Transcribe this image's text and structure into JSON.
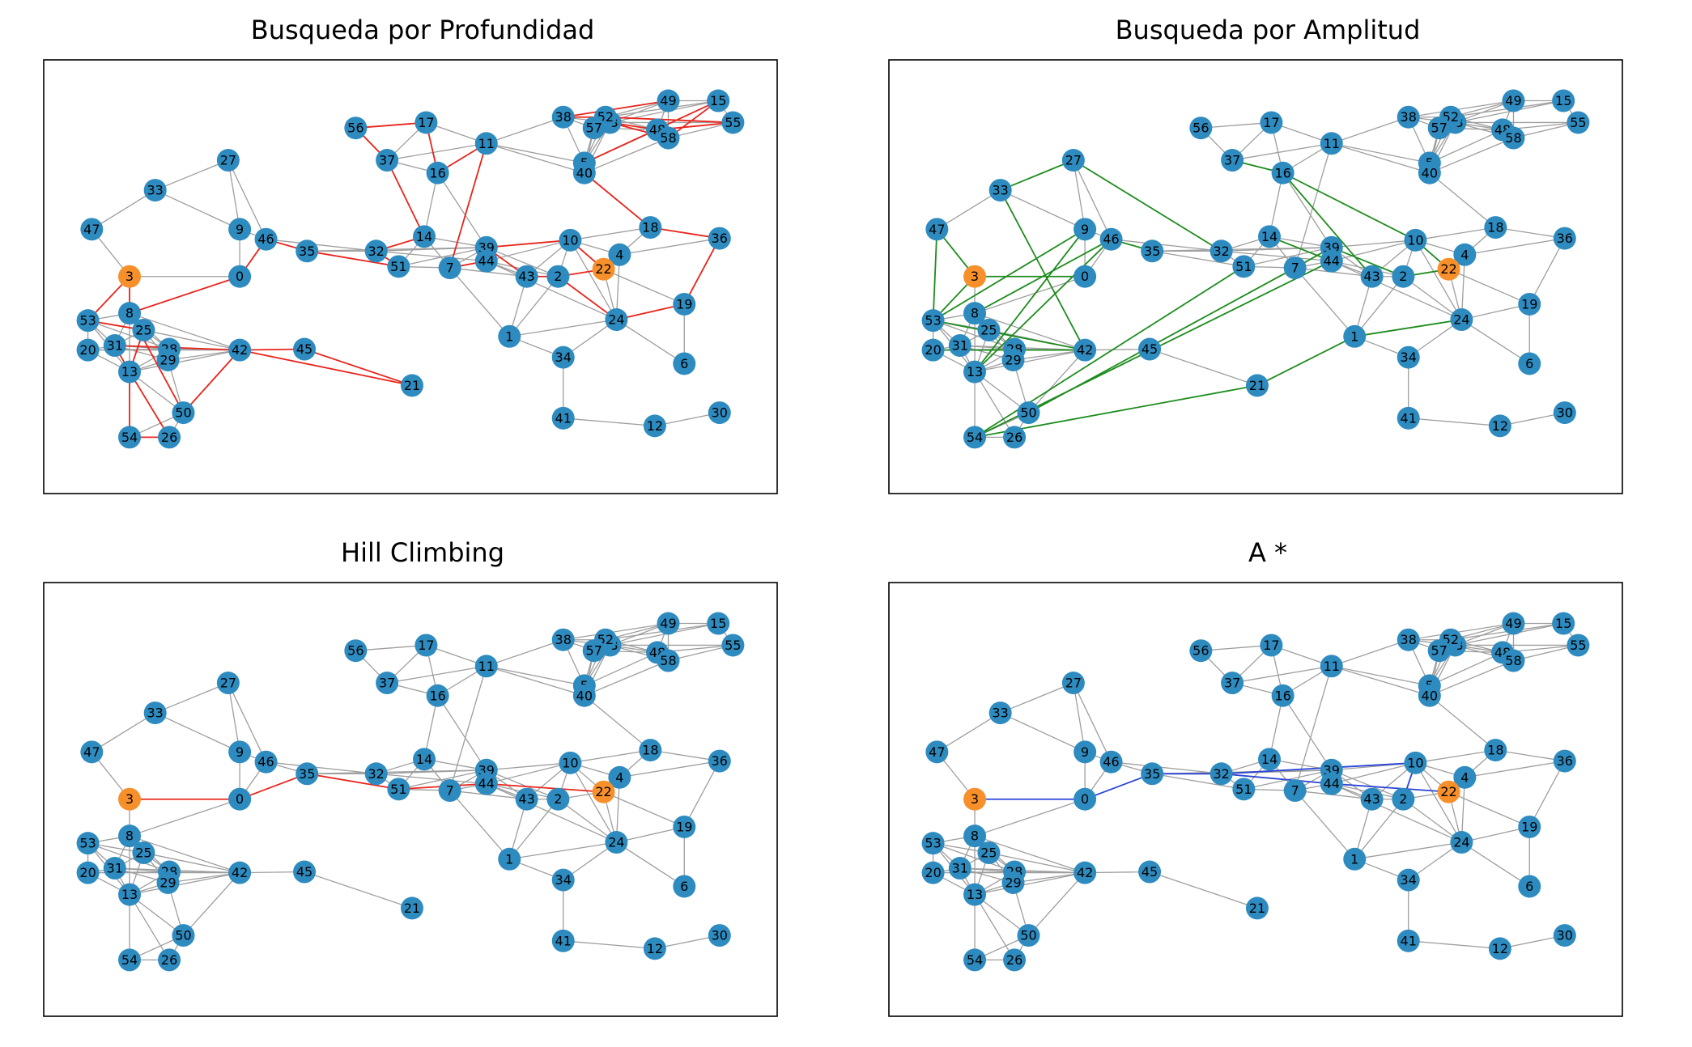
{
  "figure": {
    "node_color": "#2e8bc0",
    "highlight_color": "#f7902b",
    "edge_color": "#9e9e9e",
    "frame_color": "#000000",
    "start_node": "3",
    "goal_node": "22"
  },
  "nodes": [
    {
      "id": "0",
      "x": 3.06,
      "y": 6.13
    },
    {
      "id": "1",
      "x": 7.27,
      "y": 4.81
    },
    {
      "id": "2",
      "x": 8.03,
      "y": 6.13
    },
    {
      "id": "3",
      "x": 1.34,
      "y": 6.13
    },
    {
      "id": "4",
      "x": 8.99,
      "y": 6.61
    },
    {
      "id": "5",
      "x": 8.44,
      "y": 8.63
    },
    {
      "id": "6",
      "x": 10.0,
      "y": 4.21
    },
    {
      "id": "7",
      "x": 6.34,
      "y": 6.32
    },
    {
      "id": "8",
      "x": 1.34,
      "y": 5.32
    },
    {
      "id": "9",
      "x": 3.06,
      "y": 7.17
    },
    {
      "id": "10",
      "x": 8.22,
      "y": 6.93
    },
    {
      "id": "11",
      "x": 6.91,
      "y": 9.06
    },
    {
      "id": "12",
      "x": 9.54,
      "y": 2.84
    },
    {
      "id": "13",
      "x": 1.34,
      "y": 4.03
    },
    {
      "id": "14",
      "x": 5.94,
      "y": 7.01
    },
    {
      "id": "15",
      "x": 10.53,
      "y": 10.0
    },
    {
      "id": "16",
      "x": 6.15,
      "y": 8.41
    },
    {
      "id": "17",
      "x": 5.97,
      "y": 9.52
    },
    {
      "id": "18",
      "x": 9.47,
      "y": 7.21
    },
    {
      "id": "19",
      "x": 10.0,
      "y": 5.52
    },
    {
      "id": "20",
      "x": 0.69,
      "y": 4.51
    },
    {
      "id": "21",
      "x": 5.75,
      "y": 3.73
    },
    {
      "id": "22",
      "x": 8.74,
      "y": 6.29
    },
    {
      "id": "23",
      "x": 8.84,
      "y": 9.52
    },
    {
      "id": "24",
      "x": 8.94,
      "y": 5.18
    },
    {
      "id": "25",
      "x": 1.56,
      "y": 4.95
    },
    {
      "id": "26",
      "x": 1.96,
      "y": 2.59
    },
    {
      "id": "27",
      "x": 2.88,
      "y": 8.69
    },
    {
      "id": "28",
      "x": 1.96,
      "y": 4.53
    },
    {
      "id": "29",
      "x": 1.94,
      "y": 4.29
    },
    {
      "id": "30",
      "x": 10.55,
      "y": 3.13
    },
    {
      "id": "31",
      "x": 1.11,
      "y": 4.61
    },
    {
      "id": "32",
      "x": 5.19,
      "y": 6.69
    },
    {
      "id": "33",
      "x": 1.74,
      "y": 8.03
    },
    {
      "id": "34",
      "x": 8.11,
      "y": 4.35
    },
    {
      "id": "35",
      "x": 4.11,
      "y": 6.69
    },
    {
      "id": "36",
      "x": 10.55,
      "y": 6.97
    },
    {
      "id": "37",
      "x": 5.36,
      "y": 8.69
    },
    {
      "id": "38",
      "x": 8.11,
      "y": 9.64
    },
    {
      "id": "39",
      "x": 6.91,
      "y": 6.77
    },
    {
      "id": "40",
      "x": 8.44,
      "y": 8.41
    },
    {
      "id": "41",
      "x": 8.11,
      "y": 3.01
    },
    {
      "id": "42",
      "x": 3.06,
      "y": 4.51
    },
    {
      "id": "43",
      "x": 7.54,
      "y": 6.13
    },
    {
      "id": "44",
      "x": 6.91,
      "y": 6.47
    },
    {
      "id": "45",
      "x": 4.07,
      "y": 4.53
    },
    {
      "id": "46",
      "x": 3.47,
      "y": 6.95
    },
    {
      "id": "47",
      "x": 0.75,
      "y": 7.17
    },
    {
      "id": "48",
      "x": 9.58,
      "y": 9.36
    },
    {
      "id": "49",
      "x": 9.75,
      "y": 10.0
    },
    {
      "id": "50",
      "x": 2.18,
      "y": 3.13
    },
    {
      "id": "51",
      "x": 5.54,
      "y": 6.35
    },
    {
      "id": "52",
      "x": 8.77,
      "y": 9.64
    },
    {
      "id": "53",
      "x": 0.69,
      "y": 5.16
    },
    {
      "id": "54",
      "x": 1.34,
      "y": 2.59
    },
    {
      "id": "55",
      "x": 10.76,
      "y": 9.52
    },
    {
      "id": "56",
      "x": 4.87,
      "y": 9.4
    },
    {
      "id": "57",
      "x": 8.59,
      "y": 9.4
    },
    {
      "id": "58",
      "x": 9.75,
      "y": 9.18
    }
  ],
  "edges": [
    [
      "3",
      "0"
    ],
    [
      "3",
      "8"
    ],
    [
      "3",
      "47"
    ],
    [
      "33",
      "47"
    ],
    [
      "33",
      "9"
    ],
    [
      "27",
      "9"
    ],
    [
      "27",
      "46"
    ],
    [
      "9",
      "0"
    ],
    [
      "9",
      "46"
    ],
    [
      "0",
      "46"
    ],
    [
      "0",
      "8"
    ],
    [
      "46",
      "35"
    ],
    [
      "46",
      "32"
    ],
    [
      "35",
      "32"
    ],
    [
      "32",
      "51"
    ],
    [
      "32",
      "14"
    ],
    [
      "32",
      "39"
    ],
    [
      "32",
      "44"
    ],
    [
      "14",
      "51"
    ],
    [
      "14",
      "7"
    ],
    [
      "14",
      "16"
    ],
    [
      "14",
      "39"
    ],
    [
      "51",
      "7"
    ],
    [
      "51",
      "39"
    ],
    [
      "37",
      "56"
    ],
    [
      "37",
      "17"
    ],
    [
      "37",
      "16"
    ],
    [
      "37",
      "11"
    ],
    [
      "56",
      "17"
    ],
    [
      "17",
      "16"
    ],
    [
      "17",
      "11"
    ],
    [
      "16",
      "11"
    ],
    [
      "16",
      "39"
    ],
    [
      "11",
      "7"
    ],
    [
      "11",
      "38"
    ],
    [
      "11",
      "5"
    ],
    [
      "11",
      "40"
    ],
    [
      "38",
      "5"
    ],
    [
      "38",
      "52"
    ],
    [
      "38",
      "23"
    ],
    [
      "38",
      "57"
    ],
    [
      "38",
      "49"
    ],
    [
      "52",
      "23"
    ],
    [
      "52",
      "57"
    ],
    [
      "52",
      "49"
    ],
    [
      "52",
      "15"
    ],
    [
      "52",
      "48"
    ],
    [
      "23",
      "48"
    ],
    [
      "23",
      "58"
    ],
    [
      "23",
      "49"
    ],
    [
      "23",
      "15"
    ],
    [
      "23",
      "55"
    ],
    [
      "57",
      "48"
    ],
    [
      "57",
      "40"
    ],
    [
      "48",
      "58"
    ],
    [
      "48",
      "55"
    ],
    [
      "48",
      "49"
    ],
    [
      "49",
      "15"
    ],
    [
      "49",
      "58"
    ],
    [
      "15",
      "55"
    ],
    [
      "58",
      "55"
    ],
    [
      "5",
      "40"
    ],
    [
      "5",
      "57"
    ],
    [
      "5",
      "23"
    ],
    [
      "5",
      "52"
    ],
    [
      "5",
      "48"
    ],
    [
      "40",
      "59"
    ],
    [
      "40",
      "18"
    ],
    [
      "40",
      "58"
    ],
    [
      "40",
      "23"
    ],
    [
      "59",
      "10"
    ],
    [
      "59",
      "18"
    ],
    [
      "59",
      "4"
    ],
    [
      "59",
      "39"
    ],
    [
      "59",
      "44"
    ],
    [
      "59",
      "22"
    ],
    [
      "18",
      "36"
    ],
    [
      "18",
      "4"
    ],
    [
      "18",
      "10"
    ],
    [
      "36",
      "4"
    ],
    [
      "36",
      "19"
    ],
    [
      "4",
      "22"
    ],
    [
      "4",
      "24"
    ],
    [
      "4",
      "10"
    ],
    [
      "10",
      "39"
    ],
    [
      "10",
      "2"
    ],
    [
      "10",
      "22"
    ],
    [
      "10",
      "43"
    ],
    [
      "39",
      "44"
    ],
    [
      "39",
      "43"
    ],
    [
      "39",
      "2"
    ],
    [
      "39",
      "7"
    ],
    [
      "44",
      "7"
    ],
    [
      "44",
      "43"
    ],
    [
      "44",
      "2"
    ],
    [
      "44",
      "10"
    ],
    [
      "44",
      "24"
    ],
    [
      "7",
      "43"
    ],
    [
      "7",
      "1"
    ],
    [
      "43",
      "2"
    ],
    [
      "43",
      "1"
    ],
    [
      "2",
      "22"
    ],
    [
      "2",
      "24"
    ],
    [
      "2",
      "1"
    ],
    [
      "22",
      "24"
    ],
    [
      "22",
      "19"
    ],
    [
      "24",
      "19"
    ],
    [
      "24",
      "6"
    ],
    [
      "24",
      "1"
    ],
    [
      "24",
      "34"
    ],
    [
      "24",
      "10"
    ],
    [
      "19",
      "6"
    ],
    [
      "1",
      "34"
    ],
    [
      "34",
      "41"
    ],
    [
      "41",
      "12"
    ],
    [
      "12",
      "30"
    ],
    [
      "8",
      "53"
    ],
    [
      "8",
      "25"
    ],
    [
      "8",
      "31"
    ],
    [
      "8",
      "13"
    ],
    [
      "8",
      "42"
    ],
    [
      "8",
      "28"
    ],
    [
      "53",
      "20"
    ],
    [
      "53",
      "31"
    ],
    [
      "53",
      "25"
    ],
    [
      "53",
      "28"
    ],
    [
      "53",
      "13"
    ],
    [
      "20",
      "31"
    ],
    [
      "20",
      "13"
    ],
    [
      "20",
      "28"
    ],
    [
      "20",
      "42"
    ],
    [
      "31",
      "25"
    ],
    [
      "31",
      "28"
    ],
    [
      "31",
      "29"
    ],
    [
      "31",
      "13"
    ],
    [
      "31",
      "42"
    ],
    [
      "25",
      "28"
    ],
    [
      "25",
      "29"
    ],
    [
      "25",
      "42"
    ],
    [
      "25",
      "13"
    ],
    [
      "28",
      "29"
    ],
    [
      "28",
      "42"
    ],
    [
      "28",
      "13"
    ],
    [
      "29",
      "42"
    ],
    [
      "29",
      "13"
    ],
    [
      "29",
      "50"
    ],
    [
      "13",
      "42"
    ],
    [
      "13",
      "50"
    ],
    [
      "13",
      "54"
    ],
    [
      "13",
      "26"
    ],
    [
      "42",
      "45"
    ],
    [
      "42",
      "50"
    ],
    [
      "45",
      "21"
    ],
    [
      "54",
      "26"
    ],
    [
      "50",
      "26"
    ],
    [
      "50",
      "54"
    ],
    [
      "35",
      "51"
    ],
    [
      "35",
      "39"
    ],
    [
      "33",
      "27"
    ]
  ],
  "panels": [
    {
      "title": "Busqueda por Profundidad",
      "path_color": "#e8251c",
      "path_edges": [
        [
          "3",
          "8"
        ],
        [
          "3",
          "53"
        ],
        [
          "53",
          "25"
        ],
        [
          "25",
          "13"
        ],
        [
          "13",
          "26"
        ],
        [
          "26",
          "54"
        ],
        [
          "54",
          "13"
        ],
        [
          "13",
          "31"
        ],
        [
          "31",
          "42"
        ],
        [
          "42",
          "45"
        ],
        [
          "45",
          "21"
        ],
        [
          "42",
          "21"
        ],
        [
          "42",
          "50"
        ],
        [
          "50",
          "8"
        ],
        [
          "8",
          "0"
        ],
        [
          "0",
          "46"
        ],
        [
          "46",
          "35"
        ],
        [
          "35",
          "51"
        ],
        [
          "51",
          "32"
        ],
        [
          "32",
          "14"
        ],
        [
          "14",
          "37"
        ],
        [
          "37",
          "56"
        ],
        [
          "56",
          "17"
        ],
        [
          "17",
          "16"
        ],
        [
          "16",
          "11"
        ],
        [
          "11",
          "7"
        ],
        [
          "7",
          "44"
        ],
        [
          "44",
          "39"
        ],
        [
          "39",
          "43"
        ],
        [
          "43",
          "2"
        ],
        [
          "2",
          "22"
        ],
        [
          "22",
          "59"
        ],
        [
          "59",
          "5"
        ],
        [
          "5",
          "15"
        ],
        [
          "15",
          "58"
        ],
        [
          "58",
          "23"
        ],
        [
          "23",
          "48"
        ],
        [
          "48",
          "55"
        ],
        [
          "55",
          "52"
        ],
        [
          "52",
          "38"
        ],
        [
          "38",
          "49"
        ],
        [
          "40",
          "18"
        ],
        [
          "18",
          "36"
        ],
        [
          "36",
          "19"
        ],
        [
          "19",
          "24"
        ],
        [
          "24",
          "2"
        ],
        [
          "39",
          "10"
        ],
        [
          "10",
          "22"
        ]
      ]
    },
    {
      "title": "Busqueda por Amplitud",
      "path_color": "#1e8c1e",
      "path_edges": [
        [
          "3",
          "0"
        ],
        [
          "3",
          "53"
        ],
        [
          "47",
          "53"
        ],
        [
          "47",
          "3"
        ],
        [
          "53",
          "9"
        ],
        [
          "53",
          "42"
        ],
        [
          "20",
          "42"
        ],
        [
          "27",
          "32"
        ],
        [
          "27",
          "33"
        ],
        [
          "33",
          "42"
        ],
        [
          "9",
          "13"
        ],
        [
          "46",
          "13"
        ],
        [
          "46",
          "8"
        ],
        [
          "54",
          "21"
        ],
        [
          "54",
          "51"
        ],
        [
          "54",
          "44"
        ],
        [
          "50",
          "7"
        ],
        [
          "21",
          "1"
        ],
        [
          "1",
          "24"
        ],
        [
          "35",
          "46"
        ],
        [
          "16",
          "37"
        ],
        [
          "16",
          "10"
        ],
        [
          "16",
          "43"
        ],
        [
          "14",
          "44"
        ],
        [
          "7",
          "39"
        ],
        [
          "39",
          "2"
        ],
        [
          "2",
          "22"
        ],
        [
          "10",
          "22"
        ],
        [
          "59",
          "22"
        ]
      ]
    },
    {
      "title": "Hill Climbing",
      "path_color": "#e8251c",
      "path_edges": [
        [
          "3",
          "0"
        ],
        [
          "0",
          "35"
        ],
        [
          "35",
          "51"
        ],
        [
          "51",
          "44"
        ],
        [
          "44",
          "22"
        ]
      ]
    },
    {
      "title": "A *",
      "path_color": "#2b45d6",
      "path_edges": [
        [
          "3",
          "0"
        ],
        [
          "0",
          "35"
        ],
        [
          "35",
          "32"
        ],
        [
          "32",
          "44"
        ],
        [
          "44",
          "22"
        ],
        [
          "32",
          "10"
        ],
        [
          "10",
          "2"
        ]
      ]
    }
  ]
}
